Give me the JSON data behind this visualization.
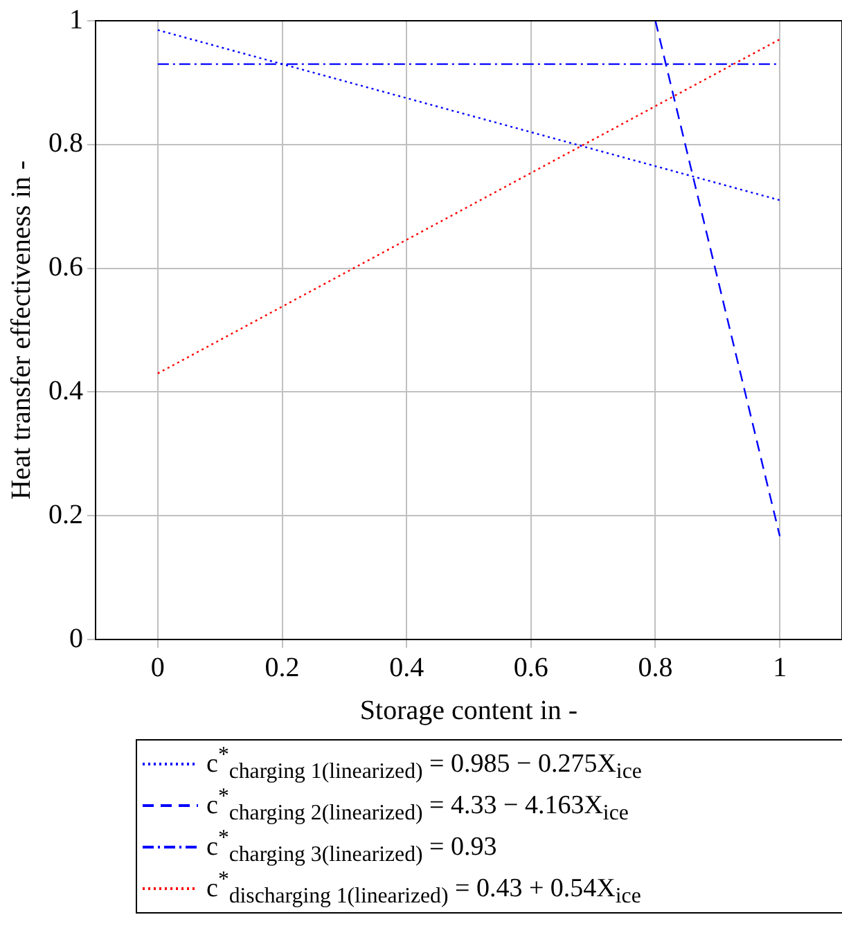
{
  "chart_data": {
    "type": "line",
    "xlabel": "Storage content in -",
    "ylabel": "Heat transfer effectiveness in -",
    "xlim": [
      -0.1,
      1.1
    ],
    "xticks": [
      0,
      0.2,
      0.4,
      0.6,
      0.8,
      1
    ],
    "ylim": [
      0,
      1
    ],
    "yticks": [
      0,
      0.2,
      0.4,
      0.6,
      0.8,
      1
    ],
    "grid": true,
    "legend": "bottom",
    "marker": "none",
    "series": [
      {
        "name": "c$^{*}$$_{charging 1(linearized)}$ = 0.985 − 0.275X$_{ice}$",
        "color": "#0000ff",
        "line_style": "dotted",
        "x": [
          0,
          1
        ],
        "values": [
          0.985,
          0.71
        ]
      },
      {
        "name": "c$^{*}$$_{charging 2(linearized)}$ = 4.33 − 4.163X$_{ice}$",
        "color": "#0000ff",
        "line_style": "dashed",
        "x": [
          0.8,
          1
        ],
        "values": [
          1,
          0.167
        ]
      },
      {
        "name": "c$^{*}$$_{charging 3(linearized)}$ = 0.93",
        "color": "#0000ff",
        "line_style": "dashdot",
        "x": [
          0,
          1
        ],
        "values": [
          0.93,
          0.93
        ]
      },
      {
        "name": "c$^{*}$$_{discharging 1(linearized)}$ = 0.43 + 0.54X$_{ice}$",
        "color": "#ff0000",
        "line_style": "dotted",
        "x": [
          0,
          1
        ],
        "values": [
          0.43,
          0.97
        ]
      }
    ]
  }
}
